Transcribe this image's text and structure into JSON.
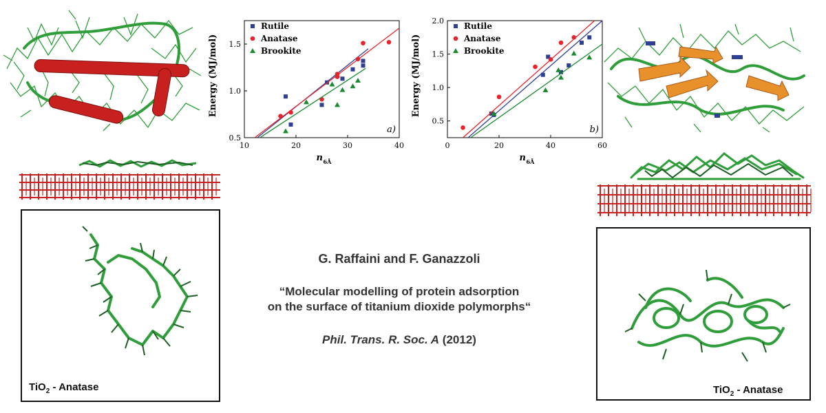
{
  "citation": {
    "authors": "G. Raffaini and F. Ganazzoli",
    "title_line1": "“Molecular modelling of protein adsorption",
    "title_line2": "on the surface of titanium dioxide polymorphs“",
    "journal_italic": "Phil. Trans. R. Soc. A",
    "year": " (2012)"
  },
  "left_box": {
    "label_main": "TiO",
    "label_sub": "2",
    "label_suffix": " - Anatase"
  },
  "right_box": {
    "label_main": "TiO",
    "label_sub": "2",
    "label_suffix": " - Anatase"
  },
  "colors": {
    "rutile": "#2e3f94",
    "anatase": "#e8232b",
    "brookite": "#198a2e",
    "protein": "#2f9e3a",
    "helix": "#c8201e",
    "sheet": "#e8902a",
    "slab": "#c8201e"
  },
  "chart_data": [
    {
      "type": "scatter",
      "panel_label": "a)",
      "xlabel": "n",
      "xlabel_sub": "6Å",
      "ylabel": "Energy  (MJ/mol)",
      "xlim": [
        10,
        40
      ],
      "ylim": [
        0.5,
        1.75
      ],
      "xticks": [
        10,
        20,
        30,
        40
      ],
      "yticks": [
        0.5,
        1.0,
        1.5
      ],
      "ytick_labels": [
        "0.5",
        "1.0",
        "1.5"
      ],
      "legend_position": "top-left",
      "series": [
        {
          "name": "Rutile",
          "marker": "square",
          "color": "#2e3f94",
          "points": [
            [
              18,
              0.94
            ],
            [
              19,
              0.64
            ],
            [
              25,
              0.85
            ],
            [
              26,
              1.09
            ],
            [
              29,
              1.13
            ],
            [
              31,
              1.23
            ],
            [
              33,
              1.27
            ],
            [
              33,
              1.32
            ]
          ],
          "fit": [
            [
              12.5,
              0.5
            ],
            [
              34,
              1.45
            ]
          ]
        },
        {
          "name": "Anatase",
          "marker": "circle",
          "color": "#e8232b",
          "points": [
            [
              17,
              0.73
            ],
            [
              19,
              0.77
            ],
            [
              25,
              0.91
            ],
            [
              28,
              1.15
            ],
            [
              28,
              1.18
            ],
            [
              32,
              1.34
            ],
            [
              33,
              1.51
            ],
            [
              38,
              1.52
            ]
          ],
          "fit": [
            [
              12,
              0.5
            ],
            [
              40,
              1.67
            ]
          ]
        },
        {
          "name": "Brookite",
          "marker": "triangle",
          "color": "#198a2e",
          "points": [
            [
              18,
              0.57
            ],
            [
              22,
              0.88
            ],
            [
              27,
              1.07
            ],
            [
              28,
              0.85
            ],
            [
              29,
              1.01
            ],
            [
              31,
              1.05
            ],
            [
              32,
              1.11
            ]
          ],
          "fit": [
            [
              13,
              0.5
            ],
            [
              33.5,
              1.24
            ]
          ]
        }
      ]
    },
    {
      "type": "scatter",
      "panel_label": "b)",
      "xlabel": "n",
      "xlabel_sub": "6Å",
      "ylabel": "Energy (MJ/mol)",
      "xlim": [
        0,
        60
      ],
      "ylim": [
        0.25,
        2.0
      ],
      "xticks": [
        0,
        20,
        40,
        60
      ],
      "yticks": [
        0.5,
        1.0,
        1.5,
        2.0
      ],
      "ytick_labels": [
        "0.5",
        "1.0",
        "1.5",
        "2.0"
      ],
      "legend_position": "top-left",
      "series": [
        {
          "name": "Rutile",
          "marker": "square",
          "color": "#2e3f94",
          "points": [
            [
              17,
              0.61
            ],
            [
              18,
              0.59
            ],
            [
              37,
              1.19
            ],
            [
              39,
              1.46
            ],
            [
              44,
              1.23
            ],
            [
              47,
              1.33
            ],
            [
              52,
              1.67
            ],
            [
              55,
              1.75
            ]
          ],
          "fit": [
            [
              8,
              0.25
            ],
            [
              60,
              2.0
            ]
          ]
        },
        {
          "name": "Anatase",
          "marker": "circle",
          "color": "#e8232b",
          "points": [
            [
              6,
              0.4
            ],
            [
              20,
              0.86
            ],
            [
              34,
              1.31
            ],
            [
              40,
              1.42
            ],
            [
              44,
              1.67
            ],
            [
              49,
              1.75
            ]
          ],
          "fit": [
            [
              6,
              0.25
            ],
            [
              57,
              2.0
            ]
          ]
        },
        {
          "name": "Brookite",
          "marker": "triangle",
          "color": "#198a2e",
          "points": [
            [
              18,
              0.61
            ],
            [
              38,
              0.96
            ],
            [
              43,
              1.26
            ],
            [
              44,
              1.15
            ],
            [
              49,
              1.51
            ],
            [
              55,
              1.45
            ]
          ],
          "fit": [
            [
              9,
              0.25
            ],
            [
              60,
              1.65
            ]
          ]
        }
      ]
    }
  ]
}
